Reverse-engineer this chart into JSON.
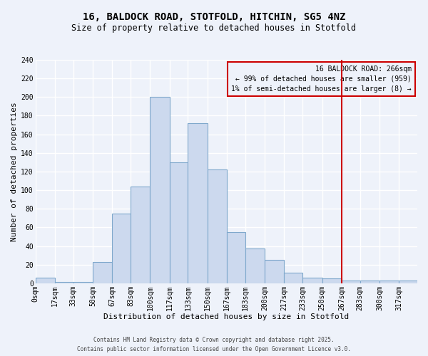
{
  "title_line1": "16, BALDOCK ROAD, STOTFOLD, HITCHIN, SG5 4NZ",
  "title_line2": "Size of property relative to detached houses in Stotfold",
  "xlabel": "Distribution of detached houses by size in Stotfold",
  "ylabel": "Number of detached properties",
  "bin_edges": [
    0,
    17,
    33,
    50,
    67,
    83,
    100,
    117,
    133,
    150,
    167,
    183,
    200,
    217,
    233,
    250,
    267,
    283,
    300,
    317,
    333
  ],
  "bar_heights": [
    6,
    1,
    1,
    23,
    75,
    104,
    200,
    130,
    172,
    122,
    55,
    37,
    25,
    11,
    6,
    5,
    3,
    3,
    3,
    3
  ],
  "bar_color": "#ccd9ee",
  "bar_edge_color": "#7fa8cc",
  "vline_x": 267,
  "vline_color": "#cc0000",
  "annotation_title": "16 BALDOCK ROAD: 266sqm",
  "annotation_line1": "← 99% of detached houses are smaller (959)",
  "annotation_line2": "1% of semi-detached houses are larger (8) →",
  "annotation_box_color": "#cc0000",
  "ylim": [
    0,
    240
  ],
  "yticks": [
    0,
    20,
    40,
    60,
    80,
    100,
    120,
    140,
    160,
    180,
    200,
    220,
    240
  ],
  "footnote1": "Contains HM Land Registry data © Crown copyright and database right 2025.",
  "footnote2": "Contains public sector information licensed under the Open Government Licence v3.0.",
  "bg_color": "#eef2fa",
  "grid_color": "#ffffff",
  "title_fontsize": 10,
  "subtitle_fontsize": 8.5,
  "xlabel_fontsize": 8,
  "ylabel_fontsize": 8,
  "tick_fontsize": 7,
  "annotation_fontsize": 7,
  "footnote_fontsize": 5.5
}
